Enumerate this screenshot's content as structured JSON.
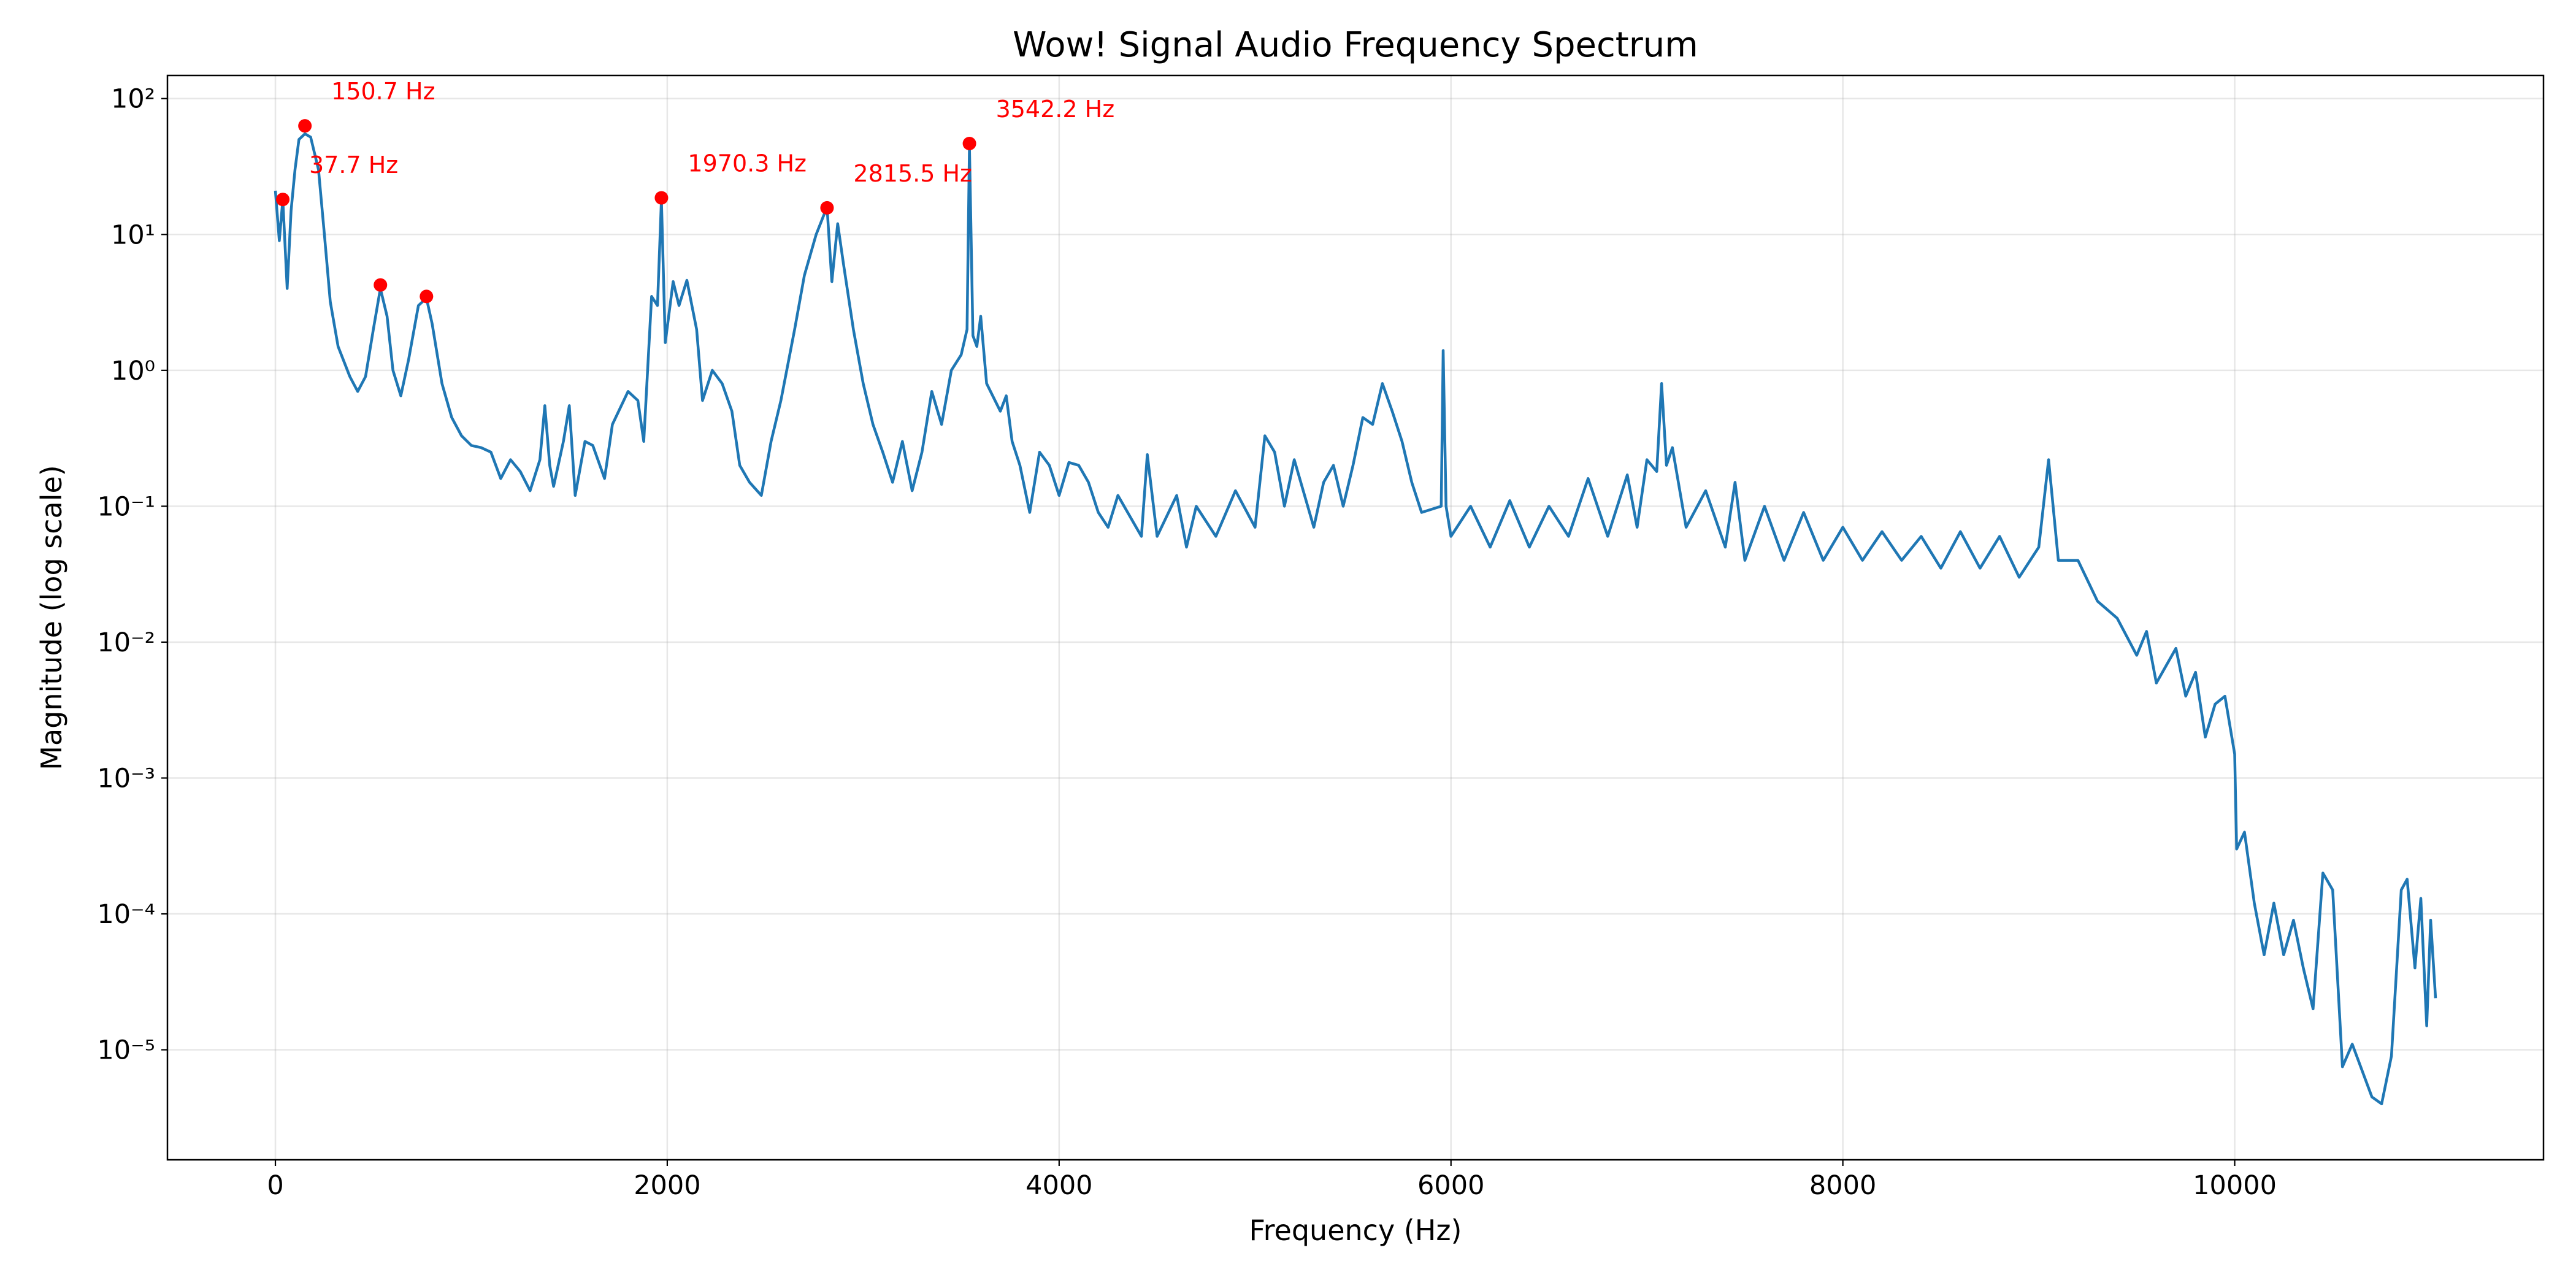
{
  "chart_data": {
    "type": "line",
    "title": "Wow! Signal Audio Frequency Spectrum",
    "xlabel": "Frequency (Hz)",
    "ylabel": "Magnitude (log scale)",
    "yscale": "log",
    "grid": true,
    "xlim": [
      -551,
      11576
    ],
    "ylim": [
      1.55e-06,
      148
    ],
    "xticks": [
      0,
      2000,
      4000,
      6000,
      8000,
      10000
    ],
    "yticks": [
      {
        "value": 1e-05,
        "label": "10⁻⁵"
      },
      {
        "value": 0.0001,
        "label": "10⁻⁴"
      },
      {
        "value": 0.001,
        "label": "10⁻³"
      },
      {
        "value": 0.01,
        "label": "10⁻²"
      },
      {
        "value": 0.1,
        "label": "10⁻¹"
      },
      {
        "value": 1,
        "label": "10⁰"
      },
      {
        "value": 10,
        "label": "10¹"
      },
      {
        "value": 100,
        "label": "10²"
      }
    ],
    "series": [
      {
        "color": "#1f77b4",
        "x": [
          0,
          20,
          37.7,
          60,
          80,
          100,
          120,
          150.7,
          180,
          220,
          250,
          280,
          320,
          380,
          420,
          460,
          500,
          536,
          570,
          600,
          640,
          680,
          730,
          771,
          800,
          850,
          900,
          950,
          1000,
          1050,
          1100,
          1150,
          1200,
          1250,
          1300,
          1350,
          1375,
          1400,
          1420,
          1470,
          1500,
          1530,
          1580,
          1620,
          1680,
          1720,
          1800,
          1850,
          1880,
          1920,
          1950,
          1970.3,
          1990,
          2030,
          2060,
          2100,
          2150,
          2180,
          2230,
          2280,
          2330,
          2370,
          2420,
          2480,
          2530,
          2580,
          2650,
          2700,
          2760,
          2800,
          2815.5,
          2840,
          2870,
          2900,
          2950,
          3000,
          3050,
          3100,
          3150,
          3200,
          3250,
          3300,
          3350,
          3400,
          3450,
          3500,
          3530,
          3542.2,
          3560,
          3580,
          3600,
          3630,
          3700,
          3730,
          3760,
          3800,
          3850,
          3900,
          3950,
          4000,
          4050,
          4100,
          4150,
          4200,
          4250,
          4300,
          4350,
          4420,
          4450,
          4500,
          4600,
          4650,
          4700,
          4800,
          4900,
          5000,
          5050,
          5100,
          5150,
          5200,
          5300,
          5350,
          5400,
          5450,
          5500,
          5550,
          5600,
          5650,
          5700,
          5750,
          5800,
          5850,
          5950,
          5960,
          5975,
          6000,
          6100,
          6200,
          6300,
          6400,
          6500,
          6600,
          6700,
          6800,
          6900,
          6950,
          7000,
          7050,
          7075,
          7100,
          7130,
          7200,
          7300,
          7400,
          7450,
          7500,
          7600,
          7700,
          7800,
          7900,
          8000,
          8100,
          8200,
          8300,
          8400,
          8500,
          8600,
          8700,
          8800,
          8900,
          9000,
          9050,
          9100,
          9200,
          9300,
          9400,
          9500,
          9550,
          9600,
          9700,
          9750,
          9800,
          9850,
          9900,
          9950,
          10000,
          10010,
          10050,
          10100,
          10150,
          10200,
          10250,
          10300,
          10350,
          10400,
          10450,
          10500,
          10550,
          10600,
          10700,
          10750,
          10800,
          10850,
          10880,
          10920,
          10950,
          10980,
          11000,
          11025
        ],
        "values": [
          21,
          9,
          18,
          4,
          15,
          30,
          50,
          55,
          52,
          30,
          10,
          3.2,
          1.5,
          0.9,
          0.7,
          0.9,
          2,
          4,
          2.5,
          1,
          0.65,
          1.2,
          3,
          3.4,
          2.2,
          0.8,
          0.45,
          0.33,
          0.28,
          0.27,
          0.25,
          0.16,
          0.22,
          0.18,
          0.13,
          0.22,
          0.55,
          0.2,
          0.14,
          0.3,
          0.55,
          0.12,
          0.3,
          0.28,
          0.16,
          0.4,
          0.7,
          0.6,
          0.3,
          3.5,
          3,
          18,
          1.6,
          4.5,
          3,
          4.6,
          2,
          0.6,
          1,
          0.8,
          0.5,
          0.2,
          0.15,
          0.12,
          0.3,
          0.6,
          2,
          5,
          10,
          14,
          16,
          4.5,
          12,
          6,
          2,
          0.8,
          0.4,
          0.25,
          0.15,
          0.3,
          0.13,
          0.25,
          0.7,
          0.4,
          1,
          1.3,
          2,
          45,
          1.8,
          1.5,
          2.5,
          0.8,
          0.5,
          0.65,
          0.3,
          0.2,
          0.09,
          0.25,
          0.2,
          0.12,
          0.21,
          0.2,
          0.15,
          0.09,
          0.07,
          0.12,
          0.09,
          0.06,
          0.24,
          0.06,
          0.12,
          0.05,
          0.1,
          0.06,
          0.13,
          0.07,
          0.33,
          0.25,
          0.1,
          0.22,
          0.07,
          0.15,
          0.2,
          0.1,
          0.2,
          0.45,
          0.4,
          0.8,
          0.5,
          0.3,
          0.15,
          0.09,
          0.1,
          1.4,
          0.1,
          0.06,
          0.1,
          0.05,
          0.11,
          0.05,
          0.1,
          0.06,
          0.16,
          0.06,
          0.17,
          0.07,
          0.22,
          0.18,
          0.8,
          0.2,
          0.27,
          0.07,
          0.13,
          0.05,
          0.15,
          0.04,
          0.1,
          0.04,
          0.09,
          0.04,
          0.07,
          0.04,
          0.065,
          0.04,
          0.06,
          0.035,
          0.065,
          0.035,
          0.06,
          0.03,
          0.05,
          0.22,
          0.04,
          0.04,
          0.02,
          0.015,
          0.008,
          0.012,
          0.005,
          0.009,
          0.004,
          0.006,
          0.002,
          0.0035,
          0.004,
          0.0015,
          0.0003,
          0.0004,
          0.00012,
          5e-05,
          0.00012,
          5e-05,
          9e-05,
          4e-05,
          2e-05,
          0.0002,
          0.00015,
          7.5e-06,
          1.1e-05,
          4.5e-06,
          4e-06,
          9e-06,
          0.00015,
          0.00018,
          4e-05,
          0.00013,
          1.5e-05,
          9e-05,
          2.4e-05
        ]
      }
    ],
    "peaks": {
      "color": "#ff0000",
      "x": [
        37.7,
        150.7,
        536,
        771,
        1970.3,
        2815.5,
        3542.2
      ],
      "values": [
        18.1,
        63,
        4.25,
        3.5,
        18.6,
        15.7,
        46.7
      ],
      "labels": [
        "37.7 Hz",
        "150.7 Hz",
        null,
        null,
        "1970.3 Hz",
        "2815.5 Hz",
        "3542.2 Hz"
      ]
    }
  }
}
